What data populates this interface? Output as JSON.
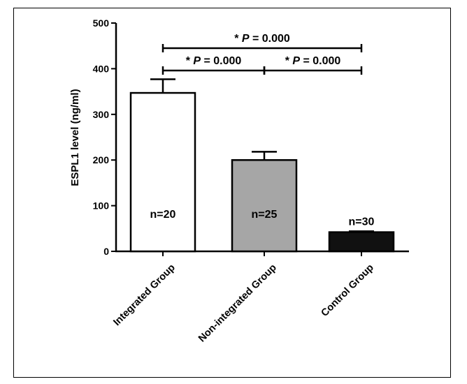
{
  "chart_data": {
    "type": "bar",
    "categories": [
      "Integrated Group",
      "Non-integrated Group",
      "Control Group"
    ],
    "values": [
      347,
      200,
      42
    ],
    "errors": [
      30,
      18,
      2
    ],
    "sample_sizes": [
      "n=20",
      "n=25",
      "n=30"
    ],
    "bar_colors": [
      "#ffffff",
      "#a6a6a6",
      "#111111"
    ],
    "ylabel": "ESPL1 level (ng/ml)",
    "xlabel": "",
    "ylim": [
      0,
      500
    ],
    "yticks": [
      0,
      100,
      200,
      300,
      400,
      500
    ],
    "grid": false,
    "comparisons": [
      {
        "from": 0,
        "to": 2,
        "star": "* ",
        "p": "P",
        "rest": " = 0.000",
        "level": 450
      },
      {
        "from": 0,
        "to": 1,
        "star": "* ",
        "p": "P",
        "rest": " = 0.000",
        "level": 400
      },
      {
        "from": 1,
        "to": 2,
        "star": "* ",
        "p": "P",
        "rest": " = 0.000",
        "level": 400
      }
    ]
  }
}
